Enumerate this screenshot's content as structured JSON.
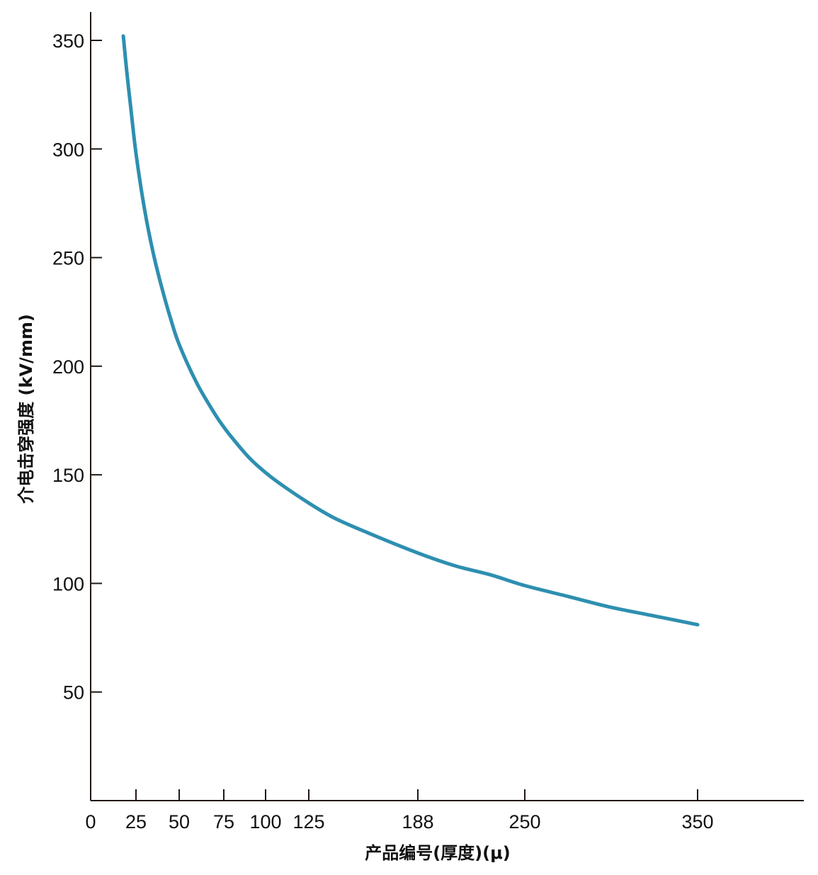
{
  "chart_data": {
    "type": "line",
    "xlabel": "产品编号(厚度)(μ)",
    "ylabel": "介电击穿强度 (kV/mm)",
    "x_ticks": [
      {
        "value": 0,
        "label": "0"
      },
      {
        "value": 25,
        "label": "25"
      },
      {
        "value": 50,
        "label": "50"
      },
      {
        "value": 75,
        "label": "75"
      },
      {
        "value": 100,
        "label": "100"
      },
      {
        "value": 125,
        "label": "125"
      },
      {
        "value": 188,
        "label": "188"
      },
      {
        "value": 250,
        "label": "250"
      },
      {
        "value": 350,
        "label": "350"
      }
    ],
    "y_ticks": [
      50,
      100,
      150,
      200,
      250,
      300,
      350
    ],
    "xlim": [
      0,
      413
    ],
    "ylim": [
      0,
      363
    ],
    "grid": false,
    "line_color": "#2e8fb0",
    "axis_color": "#231815",
    "series": [
      {
        "x": [
          18,
          20,
          22,
          25,
          30,
          35,
          40,
          45,
          50,
          60,
          70,
          75,
          80,
          90,
          100,
          110,
          125,
          140,
          160,
          188,
          210,
          230,
          250,
          275,
          300,
          325,
          350
        ],
        "y": [
          352,
          335,
          320,
          298,
          272,
          252,
          236,
          222,
          210,
          192,
          178,
          172,
          167,
          158,
          151,
          145,
          137,
          130,
          123,
          114,
          108,
          104,
          99,
          94,
          89,
          85,
          81
        ]
      }
    ]
  }
}
